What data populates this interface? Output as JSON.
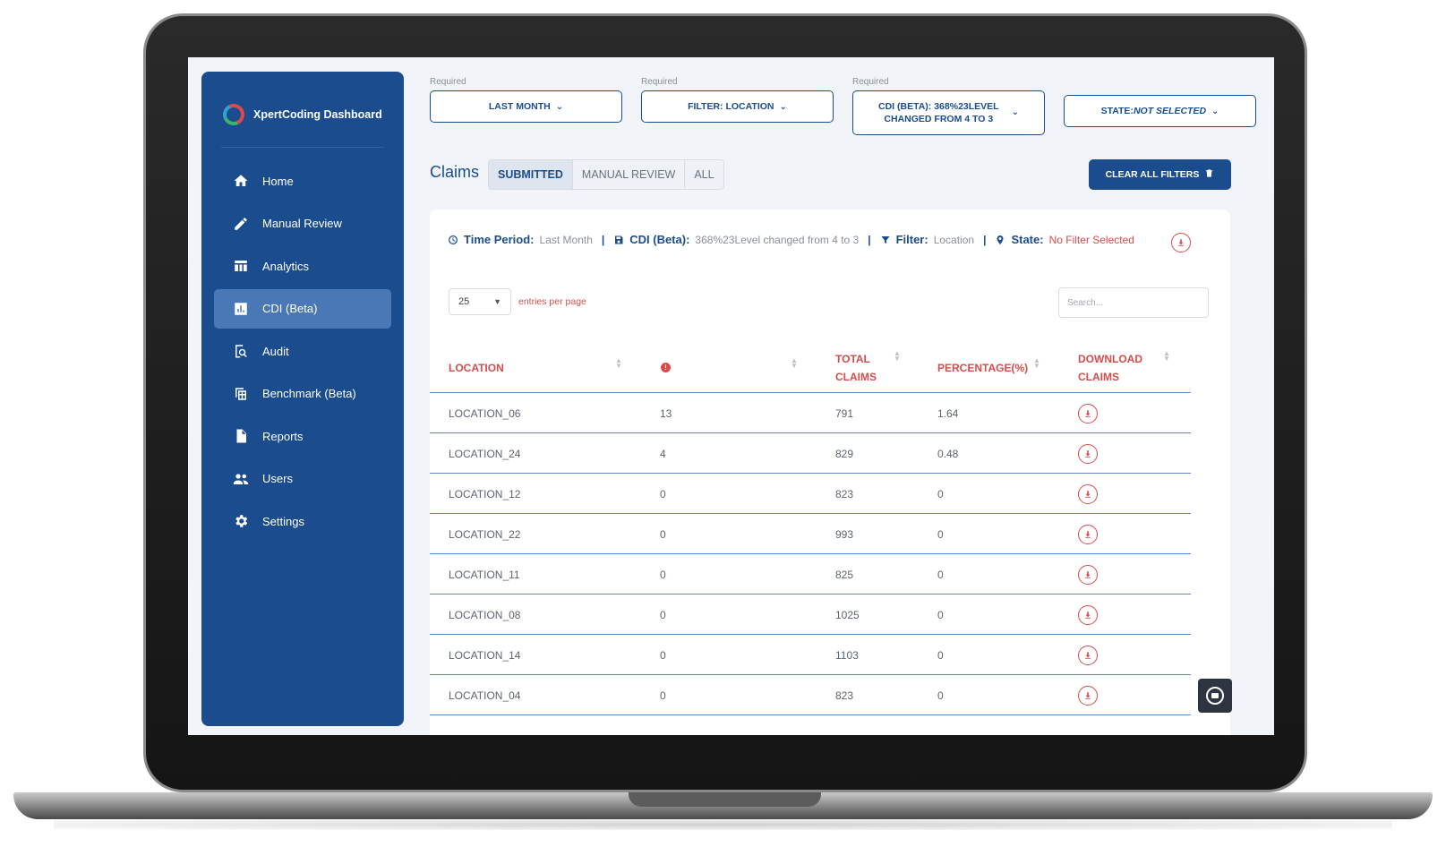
{
  "brand": {
    "name": "XpertCoding Dashboard"
  },
  "sidebar": {
    "items": [
      {
        "label": "Home",
        "icon": "home-icon",
        "active": false
      },
      {
        "label": "Manual Review",
        "icon": "pencil-icon",
        "active": false
      },
      {
        "label": "Analytics",
        "icon": "table-icon",
        "active": false
      },
      {
        "label": "CDI (Beta)",
        "icon": "chart-icon",
        "active": true
      },
      {
        "label": "Audit",
        "icon": "clipboard-search-icon",
        "active": false
      },
      {
        "label": "Benchmark (Beta)",
        "icon": "benchmark-icon",
        "active": false
      },
      {
        "label": "Reports",
        "icon": "document-icon",
        "active": false
      },
      {
        "label": "Users",
        "icon": "users-icon",
        "active": false
      },
      {
        "label": "Settings",
        "icon": "gear-icon",
        "active": false
      }
    ]
  },
  "filters": {
    "time": {
      "required": "Required",
      "label": "LAST MONTH"
    },
    "location": {
      "required": "Required",
      "label": "FILTER: LOCATION"
    },
    "cdi": {
      "required": "Required",
      "line1": "CDI (BETA): 368%23LEVEL",
      "line2": "CHANGED FROM 4 TO 3"
    },
    "state": {
      "prefix": "STATE:",
      "value": "NOT SELECTED"
    }
  },
  "claims": {
    "title": "Claims",
    "tabs": [
      {
        "label": "SUBMITTED",
        "active": true
      },
      {
        "label": "MANUAL REVIEW",
        "active": false
      },
      {
        "label": "ALL",
        "active": false
      }
    ],
    "clear_label": "CLEAR ALL FILTERS"
  },
  "summary": {
    "time_key": "Time Period:",
    "time_value": "Last Month",
    "cdi_key": "CDI (Beta):",
    "cdi_value": "368%23Level changed from 4 to 3",
    "filter_key": "Filter:",
    "filter_value": "Location",
    "state_key": "State:",
    "state_value": "No Filter Selected"
  },
  "entries": {
    "value": "25",
    "label": "entries per page"
  },
  "search": {
    "placeholder": "Search..."
  },
  "table": {
    "headers": {
      "location": "LOCATION",
      "total_l1": "TOTAL",
      "total_l2": "CLAIMS",
      "percentage": "PERCENTAGE(%)",
      "download_l1": "DOWNLOAD",
      "download_l2": "CLAIMS"
    },
    "rows": [
      {
        "location": "LOCATION_06",
        "count": "13",
        "total": "791",
        "percentage": "1.64"
      },
      {
        "location": "LOCATION_24",
        "count": "4",
        "total": "829",
        "percentage": "0.48"
      },
      {
        "location": "LOCATION_12",
        "count": "0",
        "total": "823",
        "percentage": "0"
      },
      {
        "location": "LOCATION_22",
        "count": "0",
        "total": "993",
        "percentage": "0"
      },
      {
        "location": "LOCATION_11",
        "count": "0",
        "total": "825",
        "percentage": "0"
      },
      {
        "location": "LOCATION_08",
        "count": "0",
        "total": "1025",
        "percentage": "0"
      },
      {
        "location": "LOCATION_14",
        "count": "0",
        "total": "1103",
        "percentage": "0"
      },
      {
        "location": "LOCATION_04",
        "count": "0",
        "total": "823",
        "percentage": "0"
      }
    ]
  },
  "colors": {
    "primary": "#1b4d8e",
    "accent_red": "#d94b4b",
    "active_nav": "#4a78b6"
  }
}
